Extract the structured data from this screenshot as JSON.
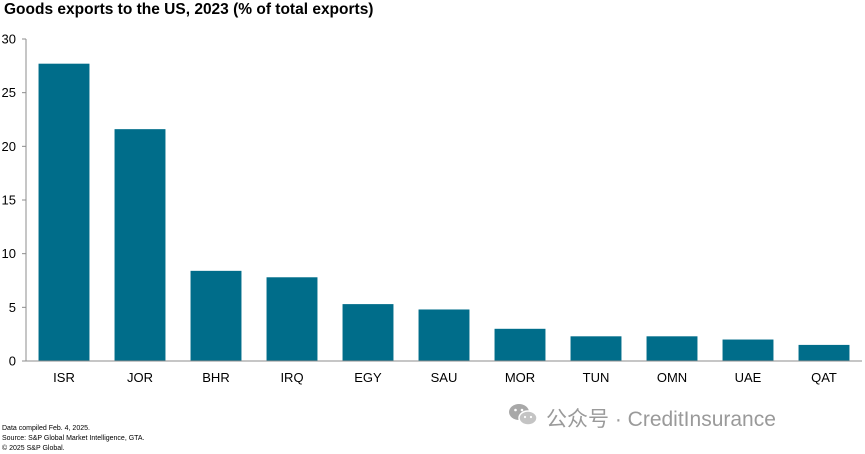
{
  "title": "Goods exports to the US, 2023 (% of total exports)",
  "chart_data": {
    "type": "bar",
    "title": "Goods exports to the US, 2023 (% of total exports)",
    "categories": [
      "ISR",
      "JOR",
      "BHR",
      "IRQ",
      "EGY",
      "SAU",
      "MOR",
      "TUN",
      "OMN",
      "UAE",
      "QAT"
    ],
    "values": [
      27.7,
      21.6,
      8.4,
      7.8,
      5.3,
      4.8,
      3.0,
      2.3,
      2.3,
      2.0,
      1.5
    ],
    "ylim": [
      0,
      30
    ],
    "yticks": [
      0,
      5,
      10,
      15,
      20,
      25,
      30
    ],
    "xlabel": "",
    "ylabel": "",
    "grid": false,
    "bar_color": "#006d8a"
  },
  "footer": {
    "line1": "Data compiled Feb. 4, 2025.",
    "line2": "Source: S&P Global Market Intelligence, GTA.",
    "line3": "© 2025 S&P Global."
  },
  "watermark": {
    "text": "公众号 · CreditInsurance",
    "icon": "wechat-icon"
  }
}
